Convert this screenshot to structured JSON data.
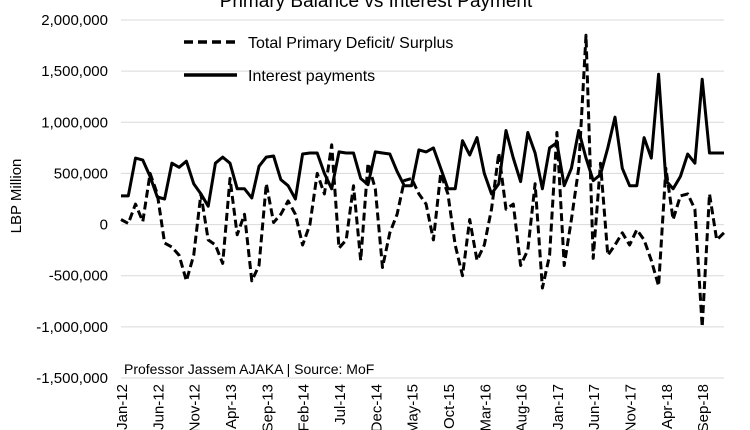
{
  "chart_data": {
    "type": "line",
    "title": "Primary Balance vs Interest Payment",
    "ylabel": "LBP Million",
    "xlabel": "",
    "ylim": [
      -1500000,
      2000000
    ],
    "y_ticks": [
      2000000,
      1500000,
      1000000,
      500000,
      0,
      -500000,
      -1000000,
      -1500000
    ],
    "y_tick_labels": [
      "2,000,000",
      "1,500,000",
      "1,000,000",
      "500,000",
      "0",
      "-500,000",
      "-1,000,000",
      "-1,500,000"
    ],
    "x_tick_labels": [
      "Jan-12",
      "Jun-12",
      "Nov-12",
      "Apr-13",
      "Sep-13",
      "Feb-14",
      "Jul-14",
      "Dec-14",
      "May-15",
      "Oct-15",
      "Mar-16",
      "Aug-16",
      "Jan-17",
      "Jun-17",
      "Nov-17",
      "Apr-18",
      "Sep-18"
    ],
    "x_tick_positions": [
      0,
      5,
      10,
      15,
      20,
      25,
      30,
      35,
      40,
      45,
      50,
      55,
      60,
      65,
      70,
      75,
      80
    ],
    "x_range": [
      0,
      83
    ],
    "grid": "horizontal",
    "legend_position": "top-left",
    "annotation": "Professor Jassem AJAKA | Source: MoF",
    "series": [
      {
        "name": "Total Primary Deficit/ Surplus",
        "style": "dashed",
        "color": "#000000",
        "values": [
          50000,
          10000,
          200000,
          30000,
          500000,
          300000,
          -180000,
          -220000,
          -300000,
          -550000,
          -300000,
          300000,
          -150000,
          -200000,
          -380000,
          450000,
          -100000,
          100000,
          -550000,
          -400000,
          400000,
          20000,
          100000,
          230000,
          100000,
          -200000,
          0,
          500000,
          300000,
          780000,
          -230000,
          -150000,
          380000,
          -350000,
          600000,
          350000,
          -420000,
          -80000,
          100000,
          430000,
          450000,
          300000,
          200000,
          -150000,
          500000,
          300000,
          -200000,
          -500000,
          50000,
          -350000,
          -200000,
          150000,
          700000,
          150000,
          200000,
          -400000,
          -250000,
          400000,
          -620000,
          -300000,
          900000,
          -400000,
          50000,
          550000,
          1850000,
          -330000,
          600000,
          -300000,
          -200000,
          -80000,
          -200000,
          -50000,
          -150000,
          -350000,
          -600000,
          550000,
          50000,
          280000,
          300000,
          150000,
          -1000000,
          300000,
          -150000,
          -80000
        ]
      },
      {
        "name": "Interest payments",
        "style": "solid",
        "color": "#000000",
        "values": [
          280000,
          280000,
          650000,
          630000,
          470000,
          270000,
          250000,
          600000,
          560000,
          620000,
          400000,
          300000,
          180000,
          600000,
          660000,
          600000,
          350000,
          350000,
          260000,
          570000,
          660000,
          670000,
          440000,
          380000,
          250000,
          690000,
          700000,
          700000,
          500000,
          350000,
          710000,
          700000,
          700000,
          450000,
          390000,
          710000,
          700000,
          690000,
          520000,
          380000,
          380000,
          730000,
          710000,
          750000,
          550000,
          350000,
          350000,
          820000,
          680000,
          850000,
          500000,
          300000,
          400000,
          920000,
          650000,
          420000,
          900000,
          700000,
          350000,
          750000,
          800000,
          380000,
          550000,
          920000,
          650000,
          430000,
          490000,
          750000,
          1050000,
          550000,
          380000,
          380000,
          850000,
          650000,
          1470000,
          430000,
          350000,
          470000,
          690000,
          600000,
          1420000,
          700000,
          700000,
          700000
        ]
      }
    ]
  }
}
